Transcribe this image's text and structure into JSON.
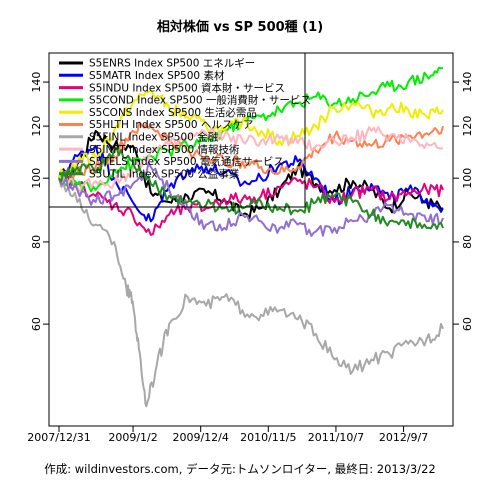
{
  "chart_data": {
    "type": "line",
    "title": "相対株価 vs SP 500種 (1)",
    "footer": "作成: wildinvestors.com, データ元:トムソンロイター, 最終日: 2013/3/22",
    "x_ticks": [
      "2007/12/31",
      "2009/1/2",
      "2009/12/4",
      "2010/11/5",
      "2011/10/7",
      "2012/9/7"
    ],
    "y_ticks": [
      60,
      80,
      100,
      120,
      140
    ],
    "y_scale": "log",
    "ylim": [
      42,
      155
    ],
    "x_range": [
      "2007/12/31",
      "2013/3/22"
    ],
    "grid": false,
    "legend_position": "top-left",
    "series": [
      {
        "name": "S5ENRS Index SP500 エネルギー",
        "color": "#000000",
        "x": [
          "2007/12/31",
          "2008/3/31",
          "2008/6/30",
          "2008/9/30",
          "2008/12/31",
          "2009/3/31",
          "2009/6/30",
          "2009/9/30",
          "2009/12/31",
          "2010/3/31",
          "2010/6/30",
          "2010/9/30",
          "2010/12/31",
          "2011/3/31",
          "2011/6/30",
          "2011/9/30",
          "2011/12/31",
          "2012/3/31",
          "2012/6/30",
          "2012/9/30",
          "2012/12/31",
          "2013/3/22"
        ],
        "values": [
          100,
          105,
          118,
          112,
          112,
          95,
          92,
          94,
          95,
          93,
          88,
          90,
          96,
          104,
          98,
          96,
          99,
          96,
          90,
          95,
          92,
          90
        ]
      },
      {
        "name": "S5MATR Index SP500 素材",
        "color": "#0000ff",
        "x": [
          "2007/12/31",
          "2008/3/31",
          "2008/6/30",
          "2008/9/30",
          "2008/12/31",
          "2009/3/31",
          "2009/6/30",
          "2009/9/30",
          "2009/12/31",
          "2010/3/31",
          "2010/6/30",
          "2010/9/30",
          "2010/12/31",
          "2011/3/31",
          "2011/6/30",
          "2011/9/30",
          "2011/12/31",
          "2012/3/31",
          "2012/6/30",
          "2012/9/30",
          "2012/12/31",
          "2013/3/22"
        ],
        "values": [
          100,
          108,
          112,
          100,
          92,
          86,
          97,
          103,
          104,
          102,
          98,
          100,
          105,
          106,
          100,
          92,
          96,
          98,
          93,
          96,
          93,
          90
        ]
      },
      {
        "name": "S5INDU Index SP500 資本財・サービス",
        "color": "#e6007e",
        "x": [
          "2007/12/31",
          "2008/3/31",
          "2008/6/30",
          "2008/9/30",
          "2008/12/31",
          "2009/3/31",
          "2009/6/30",
          "2009/9/30",
          "2009/12/31",
          "2010/3/31",
          "2010/6/30",
          "2010/9/30",
          "2010/12/31",
          "2011/3/31",
          "2011/6/30",
          "2011/9/30",
          "2011/12/31",
          "2012/3/31",
          "2012/6/30",
          "2012/9/30",
          "2012/12/31",
          "2013/3/22"
        ],
        "values": [
          100,
          98,
          94,
          91,
          88,
          82,
          88,
          90,
          90,
          93,
          93,
          94,
          97,
          99,
          97,
          92,
          95,
          96,
          93,
          95,
          96,
          96
        ]
      },
      {
        "name": "S5COND Index SP500 一般消費財・サービス",
        "color": "#00ee00",
        "x": [
          "2007/12/31",
          "2008/3/31",
          "2008/6/30",
          "2008/9/30",
          "2008/12/31",
          "2009/3/31",
          "2009/6/30",
          "2009/9/30",
          "2009/12/31",
          "2010/3/31",
          "2010/6/30",
          "2010/9/30",
          "2010/12/31",
          "2011/3/31",
          "2011/6/30",
          "2011/9/30",
          "2011/12/31",
          "2012/3/31",
          "2012/6/30",
          "2012/9/30",
          "2012/12/31",
          "2013/3/22"
        ],
        "values": [
          100,
          98,
          96,
          103,
          105,
          108,
          110,
          112,
          114,
          118,
          122,
          124,
          127,
          130,
          133,
          130,
          132,
          135,
          138,
          140,
          143,
          147
        ]
      },
      {
        "name": "S5CONS Index SP500 生活必需品",
        "color": "#eeee00",
        "x": [
          "2007/12/31",
          "2008/3/31",
          "2008/6/30",
          "2008/9/30",
          "2008/12/31",
          "2009/3/31",
          "2009/6/30",
          "2009/9/30",
          "2009/12/31",
          "2010/3/31",
          "2010/6/30",
          "2010/9/30",
          "2010/12/31",
          "2011/3/31",
          "2011/6/30",
          "2011/9/30",
          "2011/12/31",
          "2012/3/31",
          "2012/6/30",
          "2012/9/30",
          "2012/12/31",
          "2013/3/22"
        ],
        "values": [
          100,
          106,
          108,
          118,
          130,
          136,
          128,
          124,
          120,
          118,
          122,
          118,
          114,
          116,
          120,
          128,
          130,
          126,
          128,
          127,
          124,
          127
        ]
      },
      {
        "name": "S5HLTH Index SP500 ヘルスケア",
        "color": "#ff8050",
        "x": [
          "2007/12/31",
          "2008/3/31",
          "2008/6/30",
          "2008/9/30",
          "2008/12/31",
          "2009/3/31",
          "2009/6/30",
          "2009/9/30",
          "2009/12/31",
          "2010/3/31",
          "2010/6/30",
          "2010/9/30",
          "2010/12/31",
          "2011/3/31",
          "2011/6/30",
          "2011/9/30",
          "2011/12/31",
          "2012/3/31",
          "2012/6/30",
          "2012/9/30",
          "2012/12/31",
          "2013/3/22"
        ],
        "values": [
          100,
          102,
          104,
          108,
          118,
          120,
          114,
          110,
          108,
          106,
          106,
          104,
          102,
          104,
          110,
          116,
          114,
          112,
          114,
          116,
          117,
          120
        ]
      },
      {
        "name": "S5FINL Index SP500 金融",
        "color": "#a8a8a8",
        "x": [
          "2007/12/31",
          "2008/3/31",
          "2008/6/30",
          "2008/9/30",
          "2008/11/30",
          "2008/12/31",
          "2009/1/31",
          "2009/3/9",
          "2009/4/30",
          "2009/6/30",
          "2009/9/30",
          "2009/12/31",
          "2010/3/31",
          "2010/6/30",
          "2010/9/30",
          "2010/12/31",
          "2011/3/31",
          "2011/6/30",
          "2011/9/30",
          "2011/12/31",
          "2012/3/31",
          "2012/6/30",
          "2012/9/30",
          "2012/12/31",
          "2013/3/22"
        ],
        "values": [
          100,
          92,
          85,
          80,
          68,
          65,
          55,
          45,
          52,
          60,
          66,
          64,
          66,
          63,
          62,
          63,
          61,
          58,
          53,
          51,
          53,
          54,
          56,
          57,
          59
        ]
      },
      {
        "name": "S5INFT Index SP500 情報技術",
        "color": "#ffb6c1",
        "x": [
          "2007/12/31",
          "2008/3/31",
          "2008/6/30",
          "2008/9/30",
          "2008/12/31",
          "2009/3/31",
          "2009/6/30",
          "2009/9/30",
          "2009/12/31",
          "2010/3/31",
          "2010/6/30",
          "2010/9/30",
          "2010/12/31",
          "2011/3/31",
          "2011/6/30",
          "2011/9/30",
          "2011/12/31",
          "2012/3/31",
          "2012/6/30",
          "2012/9/30",
          "2012/12/31",
          "2013/3/22"
        ],
        "values": [
          100,
          97,
          99,
          98,
          103,
          110,
          112,
          115,
          117,
          116,
          114,
          114,
          115,
          113,
          112,
          114,
          115,
          118,
          116,
          115,
          113,
          111
        ]
      },
      {
        "name": "S5TELS Index SP500 電気通信サービス",
        "color": "#8f6fd0",
        "x": [
          "2007/12/31",
          "2008/3/31",
          "2008/6/30",
          "2008/9/30",
          "2008/12/31",
          "2009/3/31",
          "2009/6/30",
          "2009/9/30",
          "2009/12/31",
          "2010/3/31",
          "2010/6/30",
          "2010/9/30",
          "2010/12/31",
          "2011/3/31",
          "2011/6/30",
          "2011/9/30",
          "2011/12/31",
          "2012/3/31",
          "2012/6/30",
          "2012/9/30",
          "2012/12/31",
          "2013/3/22"
        ],
        "values": [
          100,
          96,
          92,
          94,
          98,
          104,
          96,
          90,
          85,
          84,
          88,
          86,
          84,
          85,
          83,
          84,
          86,
          88,
          91,
          88,
          86,
          87
        ]
      },
      {
        "name": "S5UTIL Index SP500 公益事業",
        "color": "#228b22",
        "x": [
          "2007/12/31",
          "2008/3/31",
          "2008/6/30",
          "2008/9/30",
          "2008/12/31",
          "2009/3/31",
          "2009/6/30",
          "2009/9/30",
          "2009/12/31",
          "2010/3/31",
          "2010/6/30",
          "2010/9/30",
          "2010/12/31",
          "2011/3/31",
          "2011/6/30",
          "2011/9/30",
          "2011/12/31",
          "2012/3/31",
          "2012/6/30",
          "2012/9/30",
          "2012/12/31",
          "2013/3/22"
        ],
        "values": [
          100,
          104,
          102,
          110,
          106,
          98,
          94,
          92,
          91,
          90,
          90,
          92,
          90,
          89,
          92,
          94,
          92,
          88,
          86,
          86,
          84,
          84
        ]
      }
    ]
  }
}
